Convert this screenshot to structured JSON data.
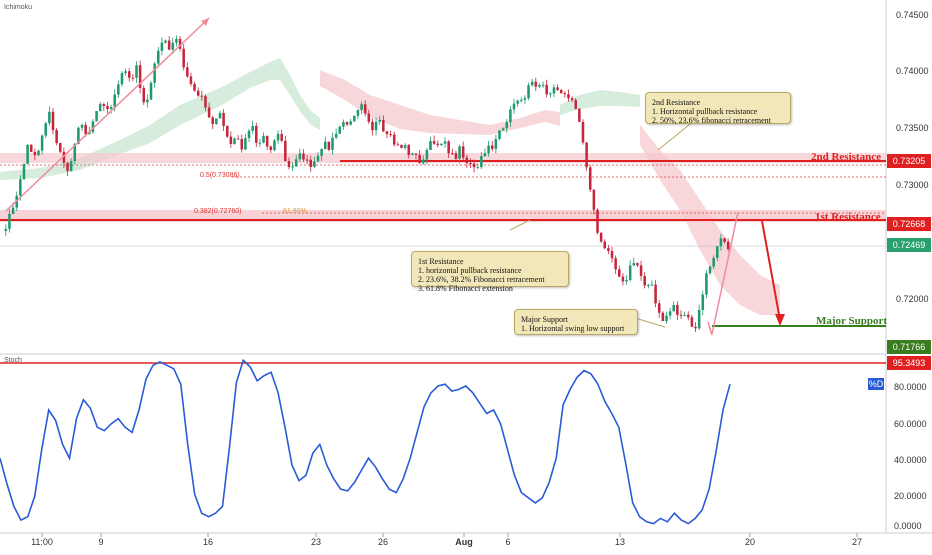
{
  "indicator_top": "Ichimoku",
  "indicator_bottom": "Stoch",
  "stoch_legend": "%D",
  "price_axis": [
    "0.74500",
    "0.74000",
    "0.73500",
    "0.73000",
    "0.72000"
  ],
  "stoch_axis": [
    "80.0000",
    "60.0000",
    "40.0000",
    "20.0000",
    "0.0000"
  ],
  "time_axis": [
    "11:00",
    "9",
    "16",
    "23",
    "26",
    "Aug",
    "6",
    "13",
    "20",
    "27"
  ],
  "price_tags": {
    "second_resistance": "0.73205",
    "first_resistance": "0.72668",
    "current": "0.72469",
    "major_support": "0.71766",
    "stoch_level": "95.3493"
  },
  "levels": {
    "second_resistance": "2nd Resistance",
    "first_resistance": "1st Resistance",
    "major_support": "Major Support"
  },
  "fib": {
    "f50": "0.5(0.73086)",
    "f382": "0.382(0.72760)",
    "ext": "61.80%"
  },
  "notes": {
    "second": [
      "2nd Resistance",
      "1. Horizontal pullback resistance",
      "2. 50%, 23.6% fibonacci retracement"
    ],
    "first": [
      "1st Resistance",
      "1. horizontal pullback resistance",
      "2. 23.6%, 38.2% Fibonacci retracement",
      "3. 61.8% Fibonacci extension"
    ],
    "support": [
      "Major Support",
      "1. Horizontal swing low support"
    ]
  },
  "colors": {
    "up": "#1e9b6e",
    "down": "#c5263b",
    "resistance": "#e02020",
    "support": "#3a7d1e",
    "stoch": "#2a5bd7",
    "cloud_green": "#cfe9d6",
    "cloud_red": "#f7d0d4"
  },
  "chart_data": {
    "type": "candlestick",
    "price_ylim": [
      0.7155,
      0.7475
    ],
    "close_path": [
      0.727,
      0.7282,
      0.7299,
      0.7317,
      0.7345,
      0.733,
      0.7338,
      0.7358,
      0.7372,
      0.735,
      0.7335,
      0.732,
      0.7328,
      0.7355,
      0.736,
      0.7352,
      0.7363,
      0.738,
      0.7378,
      0.737,
      0.7392,
      0.7405,
      0.7412,
      0.7402,
      0.7418,
      0.7378,
      0.7385,
      0.741,
      0.7435,
      0.744,
      0.7428,
      0.7445,
      0.7425,
      0.7408,
      0.7398,
      0.7385,
      0.7388,
      0.737,
      0.7362,
      0.7375,
      0.7358,
      0.7342,
      0.7353,
      0.7338,
      0.735,
      0.7362,
      0.734,
      0.7352,
      0.7335,
      0.7345,
      0.7358,
      0.733,
      0.7322,
      0.7328,
      0.7335,
      0.7328,
      0.7325,
      0.7335,
      0.7345,
      0.734,
      0.7353,
      0.736,
      0.7365,
      0.7362,
      0.737,
      0.7378,
      0.7365,
      0.7358,
      0.7372,
      0.7358,
      0.7355,
      0.7345,
      0.734,
      0.7342,
      0.7332,
      0.7336,
      0.7322,
      0.7342,
      0.735,
      0.734,
      0.7346,
      0.7338,
      0.733,
      0.734,
      0.7325,
      0.7328,
      0.7322,
      0.7334,
      0.7342,
      0.7338,
      0.7355,
      0.7362,
      0.737,
      0.7385,
      0.738,
      0.739,
      0.74,
      0.7392,
      0.7398,
      0.7388,
      0.7395,
      0.739,
      0.7392,
      0.7385,
      0.7378,
      0.7362,
      0.7325,
      0.7298,
      0.7265,
      0.7255,
      0.7245,
      0.7235,
      0.7222,
      0.7215,
      0.7232,
      0.724,
      0.7225,
      0.721,
      0.7218,
      0.7195,
      0.7185,
      0.7188,
      0.7198,
      0.7185,
      0.719,
      0.7183,
      0.7177,
      0.72,
      0.7225,
      0.7238,
      0.725,
      0.7263,
      0.7247
    ],
    "stoch_d": [
      40,
      25,
      12,
      4,
      6,
      18,
      45,
      68,
      62,
      48,
      40,
      63,
      74,
      69,
      58,
      56,
      60,
      63,
      58,
      55,
      68,
      86,
      94,
      96,
      94,
      92,
      83,
      48,
      19,
      8,
      6,
      8,
      12,
      46,
      84,
      97,
      93,
      85,
      88,
      90,
      78,
      58,
      36,
      27,
      30,
      43,
      48,
      36,
      28,
      22,
      21,
      26,
      33,
      40,
      35,
      28,
      22,
      20,
      28,
      40,
      55,
      70,
      78,
      82,
      83,
      79,
      80,
      82,
      78,
      72,
      66,
      68,
      60,
      45,
      30,
      20,
      17,
      14,
      17,
      26,
      40,
      71,
      80,
      87,
      91,
      89,
      83,
      73,
      66,
      58,
      37,
      14,
      6,
      3,
      2,
      5,
      3,
      8,
      4,
      2,
      5,
      10,
      22,
      44,
      68,
      83
    ]
  }
}
